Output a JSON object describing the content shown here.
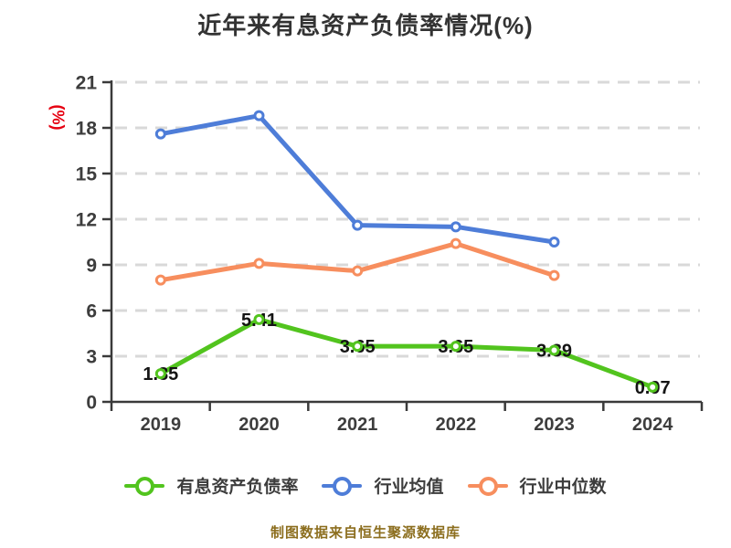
{
  "colors": {
    "background": "#ffffff",
    "title_text": "#333333",
    "axis_line": "#3a3a3a",
    "tick_label": "#3d3d3d",
    "gridline": "#d9d9d9",
    "data_label": "#141414",
    "y_unit_label": "#e60012",
    "footer_text": "#8c6e1e",
    "marker_fill": "#ffffff"
  },
  "chart_data": {
    "type": "line",
    "title": "近年来有息资产负债率情况(%)",
    "ylabel": "(%)",
    "xlabel": "",
    "categories": [
      "2019",
      "2020",
      "2021",
      "2022",
      "2023",
      "2024"
    ],
    "ylim": [
      0,
      21
    ],
    "yticks": [
      0,
      3,
      6,
      9,
      12,
      15,
      18,
      21
    ],
    "grid": "horizontal-dashed",
    "legend_position": "bottom",
    "series": [
      {
        "name": "有息资产负债率",
        "color": "#52c41e",
        "values": [
          1.85,
          5.41,
          3.65,
          3.65,
          3.39,
          0.97
        ],
        "point_labels": [
          "1.85",
          "5.41",
          "3.65",
          "3.65",
          "3.39",
          "0.97"
        ]
      },
      {
        "name": "行业均值",
        "color": "#4e7dd8",
        "values": [
          17.6,
          18.8,
          11.6,
          11.5,
          10.5,
          null
        ],
        "point_labels": []
      },
      {
        "name": "行业中位数",
        "color": "#f78e5e",
        "values": [
          8.0,
          9.1,
          8.6,
          10.4,
          8.3,
          null
        ],
        "point_labels": []
      }
    ],
    "footer": "制图数据来自恒生聚源数据库"
  }
}
